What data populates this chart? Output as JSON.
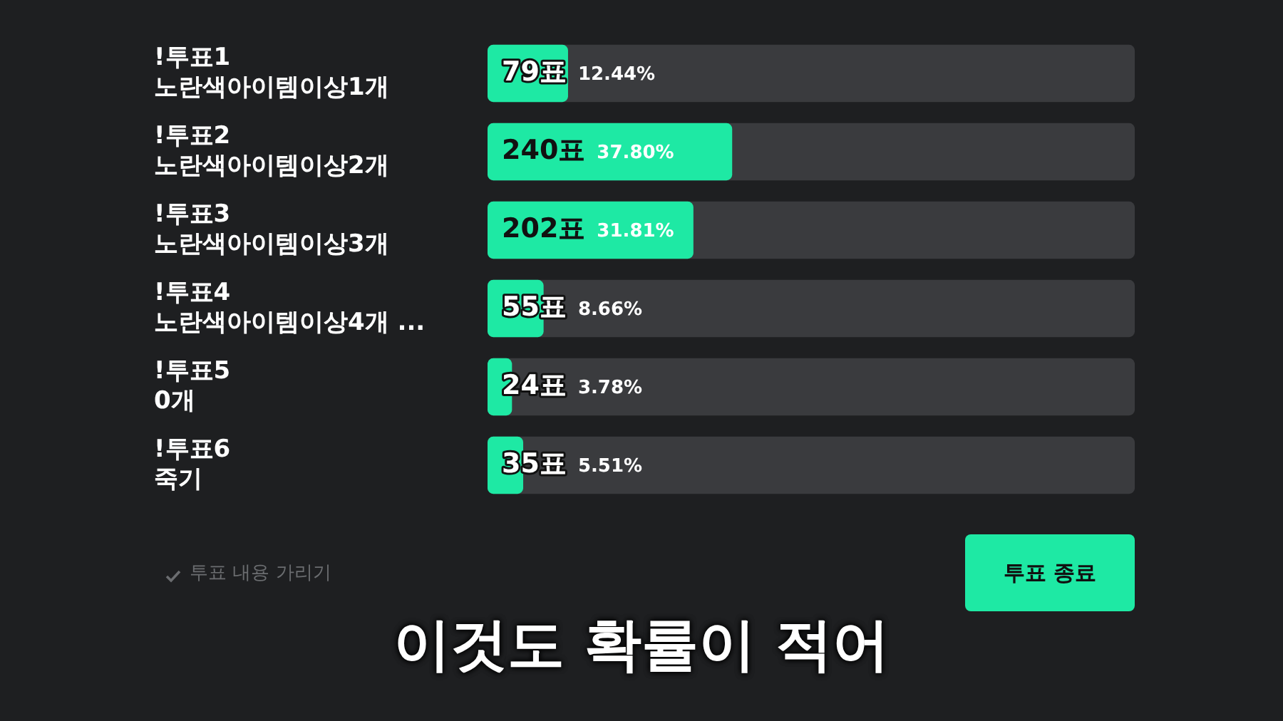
{
  "chart_data": {
    "type": "bar",
    "orientation": "horizontal",
    "categories": [
      "!투표1\n노란색아이템이상1개",
      "!투표2\n노란색아이템이상2개",
      "!투표3\n노란색아이템이상3개",
      "!투표4\n노란색아이템이상4개 ...",
      "!투표5\n0개",
      "!투표6\n죽기"
    ],
    "values": [
      12.44,
      37.8,
      31.81,
      8.66,
      3.78,
      5.51
    ],
    "value_labels": [
      "79표 12.44%",
      "240표 37.80%",
      "202표 31.81%",
      "55표 8.66%",
      "24표 3.78%",
      "35표 5.51%"
    ],
    "color": "#1ee9a4",
    "xlim": [
      0,
      100
    ],
    "tick_labels": "y",
    "legend": false,
    "annotations": [
      "투표 내용 가리기",
      "투표 종료",
      "이것도 확률이 적어"
    ]
  }
}
